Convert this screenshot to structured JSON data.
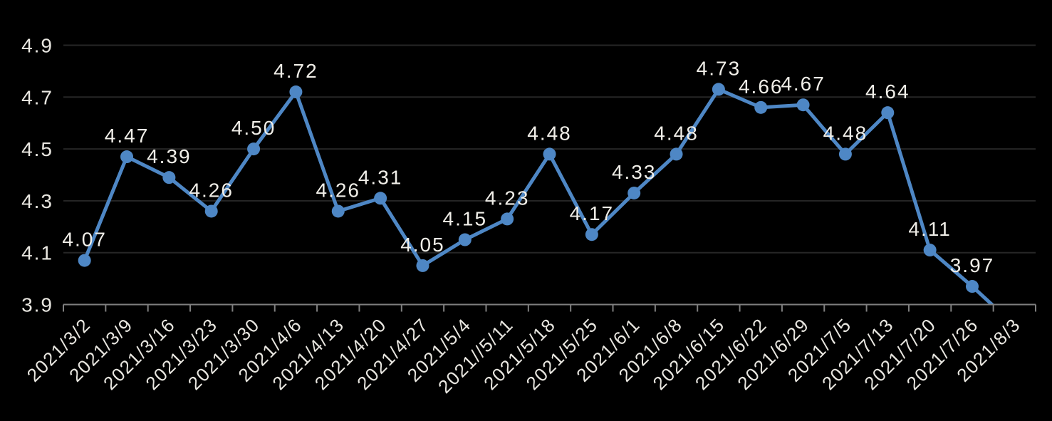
{
  "chart_data": {
    "type": "line",
    "title": "",
    "categories": [
      "2021/3/2",
      "2021/3/9",
      "2021/3/16",
      "2021/3/23",
      "2021/3/30",
      "2021/4/6",
      "2021/4/13",
      "2021/4/20",
      "2021/4/27",
      "2021/5/4",
      "2021//5/11",
      "2021/5/18",
      "2021/5/25",
      "2021/6/1",
      "2021/6/8",
      "2021/6/15",
      "2021/6/22",
      "2021/6/29",
      "2021/7/5",
      "2021/7/13",
      "2021/7/20",
      "2021/7/26",
      "2021/8/3"
    ],
    "values": [
      4.07,
      4.47,
      4.39,
      4.26,
      4.5,
      4.72,
      4.26,
      4.31,
      4.05,
      4.15,
      4.23,
      4.48,
      4.17,
      4.33,
      4.48,
      4.73,
      4.66,
      4.67,
      4.48,
      4.64,
      4.11,
      3.97,
      3.82
    ],
    "data_labels": [
      "4.07",
      "4.47",
      "4.39",
      "4.26",
      "4.50",
      "4.72",
      "4.26",
      "4.31",
      "4.05",
      "4.15",
      "4.23",
      "4.48",
      "4.17",
      "4.33",
      "4.48",
      "4.73",
      "4.66",
      "4.67",
      "4.48",
      "4.64",
      "4.11",
      "3.97",
      ""
    ],
    "final_point_clipped_below_axis": true,
    "xlabel": "",
    "ylabel": "",
    "ylim": [
      3.9,
      4.9
    ],
    "yticks": [
      "3.9",
      "4.1",
      "4.3",
      "4.5",
      "4.7",
      "4.9"
    ],
    "grid": true,
    "legend": "none",
    "x_label_rotation_deg": 45,
    "colors": {
      "background": "#000000",
      "line": "#4E87C5",
      "marker": "#4E87C5",
      "gridline": "#262626",
      "axis": "#7F7F7F",
      "tick_label": "#E9E7E1",
      "data_label": "#F0EEE8"
    }
  }
}
